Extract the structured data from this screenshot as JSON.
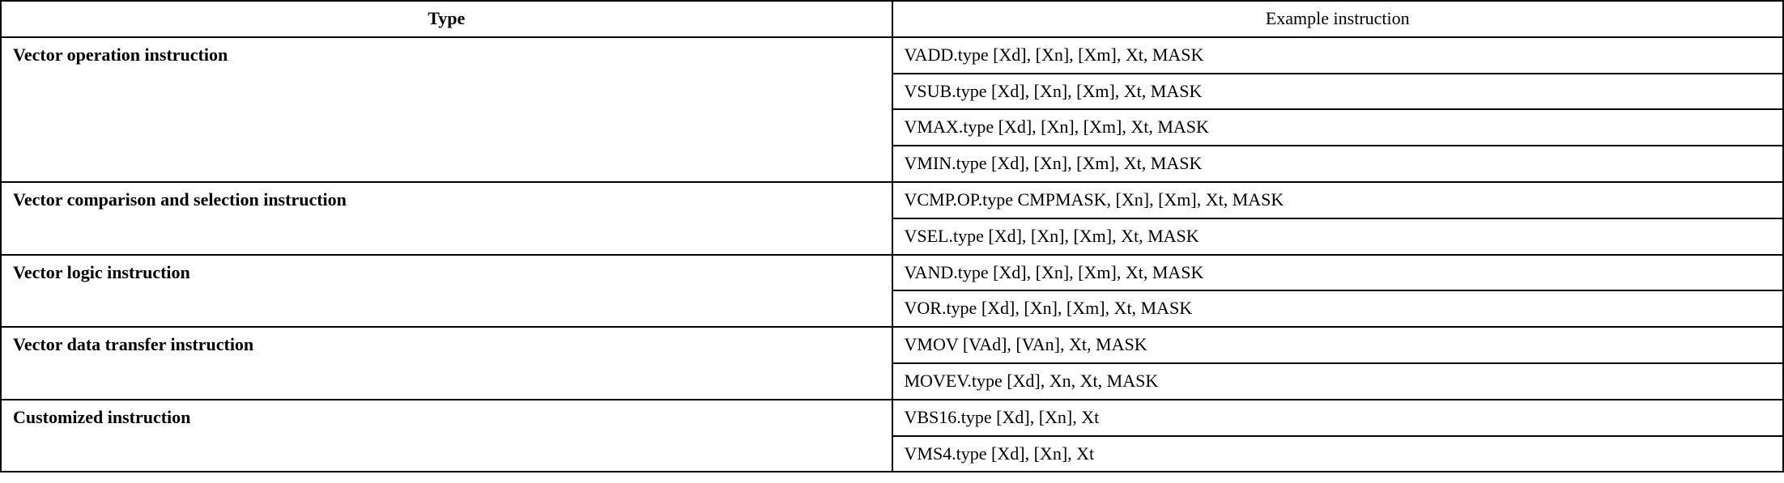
{
  "table": {
    "columns": [
      "Type",
      "Example instruction"
    ],
    "col_widths": [
      "50%",
      "50%"
    ],
    "border_color": "#000000",
    "border_width": 2,
    "background_color": "#ffffff",
    "header_font_weight": "bold",
    "header_align": "center",
    "cell_font_size": 22,
    "font_family": "Palatino Linotype, Book Antiqua, Palatino, Georgia, serif",
    "groups": [
      {
        "type": "Vector operation instruction",
        "examples": [
          "VADD.type [Xd], [Xn], [Xm], Xt, MASK",
          "VSUB.type [Xd], [Xn], [Xm], Xt, MASK",
          "VMAX.type [Xd], [Xn], [Xm], Xt, MASK",
          "VMIN.type [Xd], [Xn], [Xm], Xt, MASK"
        ]
      },
      {
        "type": "Vector comparison and selection instruction",
        "examples": [
          "VCMP.OP.type CMPMASK, [Xn], [Xm], Xt, MASK",
          "VSEL.type [Xd], [Xn], [Xm], Xt, MASK"
        ]
      },
      {
        "type": "Vector logic instruction",
        "examples": [
          "VAND.type [Xd], [Xn], [Xm], Xt, MASK",
          "VOR.type [Xd], [Xn], [Xm], Xt, MASK"
        ]
      },
      {
        "type": "Vector data transfer instruction",
        "examples": [
          "VMOV [VAd], [VAn], Xt, MASK",
          "MOVEV.type [Xd], Xn, Xt, MASK"
        ]
      },
      {
        "type": "Customized instruction",
        "examples": [
          "VBS16.type [Xd], [Xn], Xt",
          "VMS4.type [Xd], [Xn], Xt"
        ]
      }
    ]
  }
}
